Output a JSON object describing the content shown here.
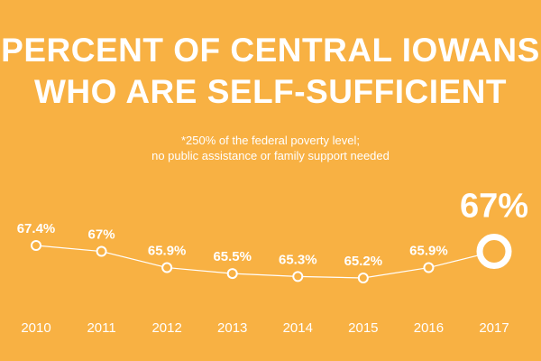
{
  "title_line1": "PERCENT OF CENTRAL IOWANS",
  "title_line2": "WHO ARE SELF-SUFFICIENT",
  "note_line1": "*250% of the federal poverty level;",
  "note_line2": "no public assistance or family support needed",
  "colors": {
    "background": "#f8b143",
    "foreground": "#ffffff"
  },
  "chart_data": {
    "type": "line",
    "categories": [
      "2010",
      "2011",
      "2012",
      "2013",
      "2014",
      "2015",
      "2016",
      "2017"
    ],
    "values": [
      67.4,
      67,
      65.9,
      65.5,
      65.3,
      65.2,
      65.9,
      67
    ],
    "data_labels": [
      "67.4%",
      "67%",
      "65.9%",
      "65.5%",
      "65.3%",
      "65.2%",
      "65.9%",
      "67%"
    ],
    "highlight_index": 7,
    "grid": false,
    "title": "PERCENT OF CENTRAL IOWANS WHO ARE SELF-SUFFICIENT",
    "xlabel": "",
    "ylabel": ""
  }
}
